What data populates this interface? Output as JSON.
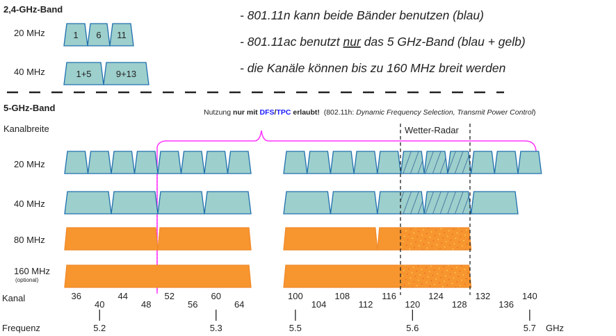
{
  "band24": {
    "title": "2,4-GHz-Band",
    "rows": [
      {
        "label": "20 MHz",
        "channels": [
          "1",
          "6",
          "11"
        ]
      },
      {
        "label": "40 MHz",
        "channels": [
          "1+5",
          "9+13"
        ]
      }
    ]
  },
  "notes": [
    {
      "pre": "- 801.11n kann beide Bänder benutzen (blau)",
      "u": "",
      "post": ""
    },
    {
      "pre": "- 801.11ac benutzt ",
      "u": "nur",
      "post": " das 5 GHz-Band (blau + gelb)"
    },
    {
      "pre": "- die Kanäle können bis zu 160 MHz breit werden",
      "u": "",
      "post": ""
    }
  ],
  "band5": {
    "title": "5-GHz-Band",
    "dfs_note": {
      "t1": "Nutzung ",
      "t2": "nur mit ",
      "t3": "DFS",
      "t4": "/",
      "t5": "TPC",
      "t6": " erlaubt!",
      "t7": "  (802.11h: ",
      "t8": "Dynamic Frequency Selection, Transmit Power Control",
      "t9": ")"
    },
    "kanalbreite_label": "Kanalbreite",
    "weather_radar_label": "Wetter-Radar",
    "rows": [
      {
        "label": "20 MHz",
        "sublabel": "",
        "width_channels": 1,
        "color": "#9dcfcc"
      },
      {
        "label": "40 MHz",
        "sublabel": "",
        "width_channels": 2,
        "color": "#9dcfcc"
      },
      {
        "label": "80 MHz",
        "sublabel": "",
        "width_channels": 4,
        "color": "#f7952f"
      },
      {
        "label": "160 MHz",
        "sublabel": "(optional)",
        "width_channels": 8,
        "color": "#f7952f"
      }
    ],
    "kanal_label": "Kanal",
    "channels_low": [
      "36",
      "40",
      "44",
      "48",
      "52",
      "56",
      "60",
      "64"
    ],
    "channels_high": [
      "100",
      "104",
      "108",
      "112",
      "116",
      "120",
      "124",
      "128",
      "132",
      "136",
      "140"
    ],
    "frequenz_label": "Frequenz",
    "frequencies": [
      {
        "label": "5.2",
        "channel": "40"
      },
      {
        "label": "5.3",
        "channel": "60"
      },
      {
        "label": "5.5",
        "channel": "100"
      },
      {
        "label": "5.6",
        "channel": "120"
      },
      {
        "label": "5.7",
        "channel": "140"
      }
    ],
    "unit": "GHz"
  },
  "colors": {
    "blue_fill": "#9dcfcc",
    "blue_stroke": "#1f6fae",
    "orange": "#f7952f",
    "magenta": "#ff33ff",
    "dfs_blue": "#1a1aff"
  }
}
